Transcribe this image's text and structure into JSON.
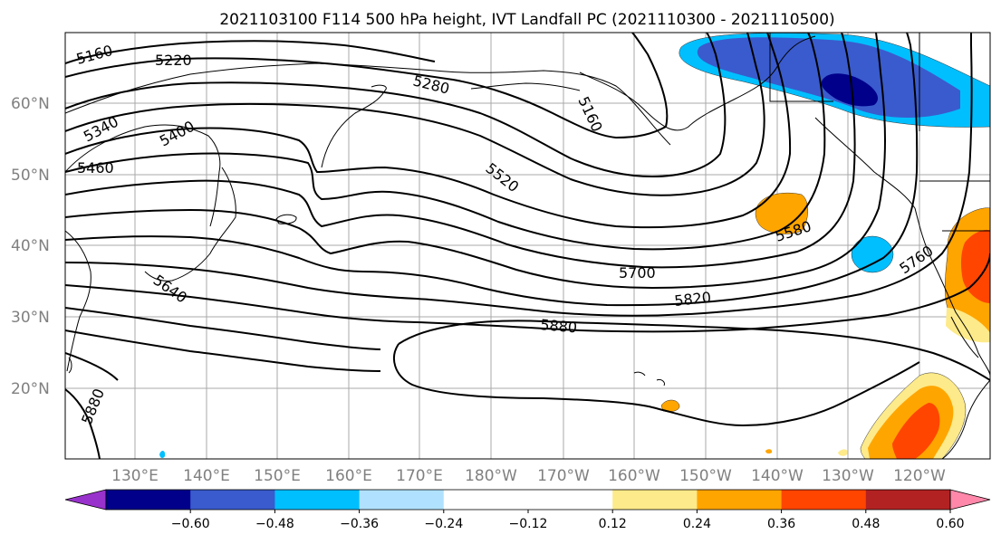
{
  "title": "2021103100 F114 500 hPa height, IVT Landfall PC (2021110300 - 2021110500)",
  "latitude_labels": [
    "60°N",
    "50°N",
    "40°N",
    "30°N",
    "20°N"
  ],
  "longitude_labels": [
    "130°E",
    "140°E",
    "150°E",
    "160°E",
    "170°E",
    "180°W",
    "170°W",
    "160°W",
    "150°W",
    "140°W",
    "130°W",
    "120°W"
  ],
  "contour_labels": [
    "5160",
    "5220",
    "5280",
    "5160",
    "5340",
    "5400",
    "5460",
    "5520",
    "5580",
    "5640",
    "5700",
    "5760",
    "5820",
    "5880",
    "5880"
  ],
  "colorbar": {
    "colors": [
      "#9932cc",
      "#00008b",
      "#3a5bcd",
      "#00bfff",
      "#b0e2ff",
      "#ffffff",
      "#ffffff",
      "#fdea8a",
      "#ffa500",
      "#ff4500",
      "#b22222",
      "#ff88aa"
    ],
    "tick_labels": [
      "−0.60",
      "−0.48",
      "−0.36",
      "−0.24",
      "−0.12",
      "0.12",
      "0.24",
      "0.36",
      "0.48",
      "0.60"
    ]
  }
}
